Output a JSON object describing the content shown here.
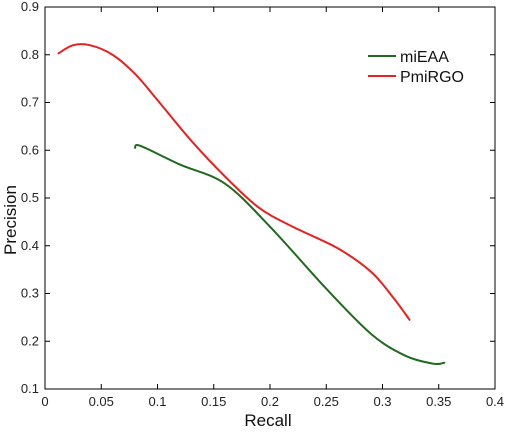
{
  "chart_data": {
    "type": "line",
    "title": "",
    "xlabel": "Recall",
    "ylabel": "Precision",
    "xlim": [
      0,
      0.4
    ],
    "ylim": [
      0.1,
      0.9
    ],
    "x_ticks": [
      0,
      0.05,
      0.1,
      0.15,
      0.2,
      0.25,
      0.3,
      0.35,
      0.4
    ],
    "x_tick_labels": [
      "0",
      "0.05",
      "0.1",
      "0.15",
      "0.2",
      "0.25",
      "0.3",
      "0.35",
      "0.4"
    ],
    "y_ticks": [
      0.1,
      0.2,
      0.3,
      0.4,
      0.5,
      0.6,
      0.7,
      0.8,
      0.9
    ],
    "y_tick_labels": [
      "0.1",
      "0.2",
      "0.3",
      "0.4",
      "0.5",
      "0.6",
      "0.7",
      "0.8",
      "0.9"
    ],
    "grid": false,
    "legend_position": "top-right",
    "series": [
      {
        "name": "miEAA",
        "color": "#1e6b1e",
        "x": [
          0.08,
          0.085,
          0.12,
          0.16,
          0.2,
          0.25,
          0.29,
          0.32,
          0.345,
          0.355
        ],
        "y": [
          0.605,
          0.609,
          0.57,
          0.53,
          0.44,
          0.31,
          0.215,
          0.17,
          0.153,
          0.155
        ]
      },
      {
        "name": "PmiRGO",
        "color": "#e82020",
        "x": [
          0.012,
          0.025,
          0.04,
          0.06,
          0.08,
          0.1,
          0.13,
          0.16,
          0.19,
          0.22,
          0.26,
          0.29,
          0.31,
          0.324
        ],
        "y": [
          0.803,
          0.82,
          0.82,
          0.8,
          0.76,
          0.705,
          0.62,
          0.545,
          0.48,
          0.44,
          0.395,
          0.345,
          0.29,
          0.245
        ]
      }
    ]
  }
}
